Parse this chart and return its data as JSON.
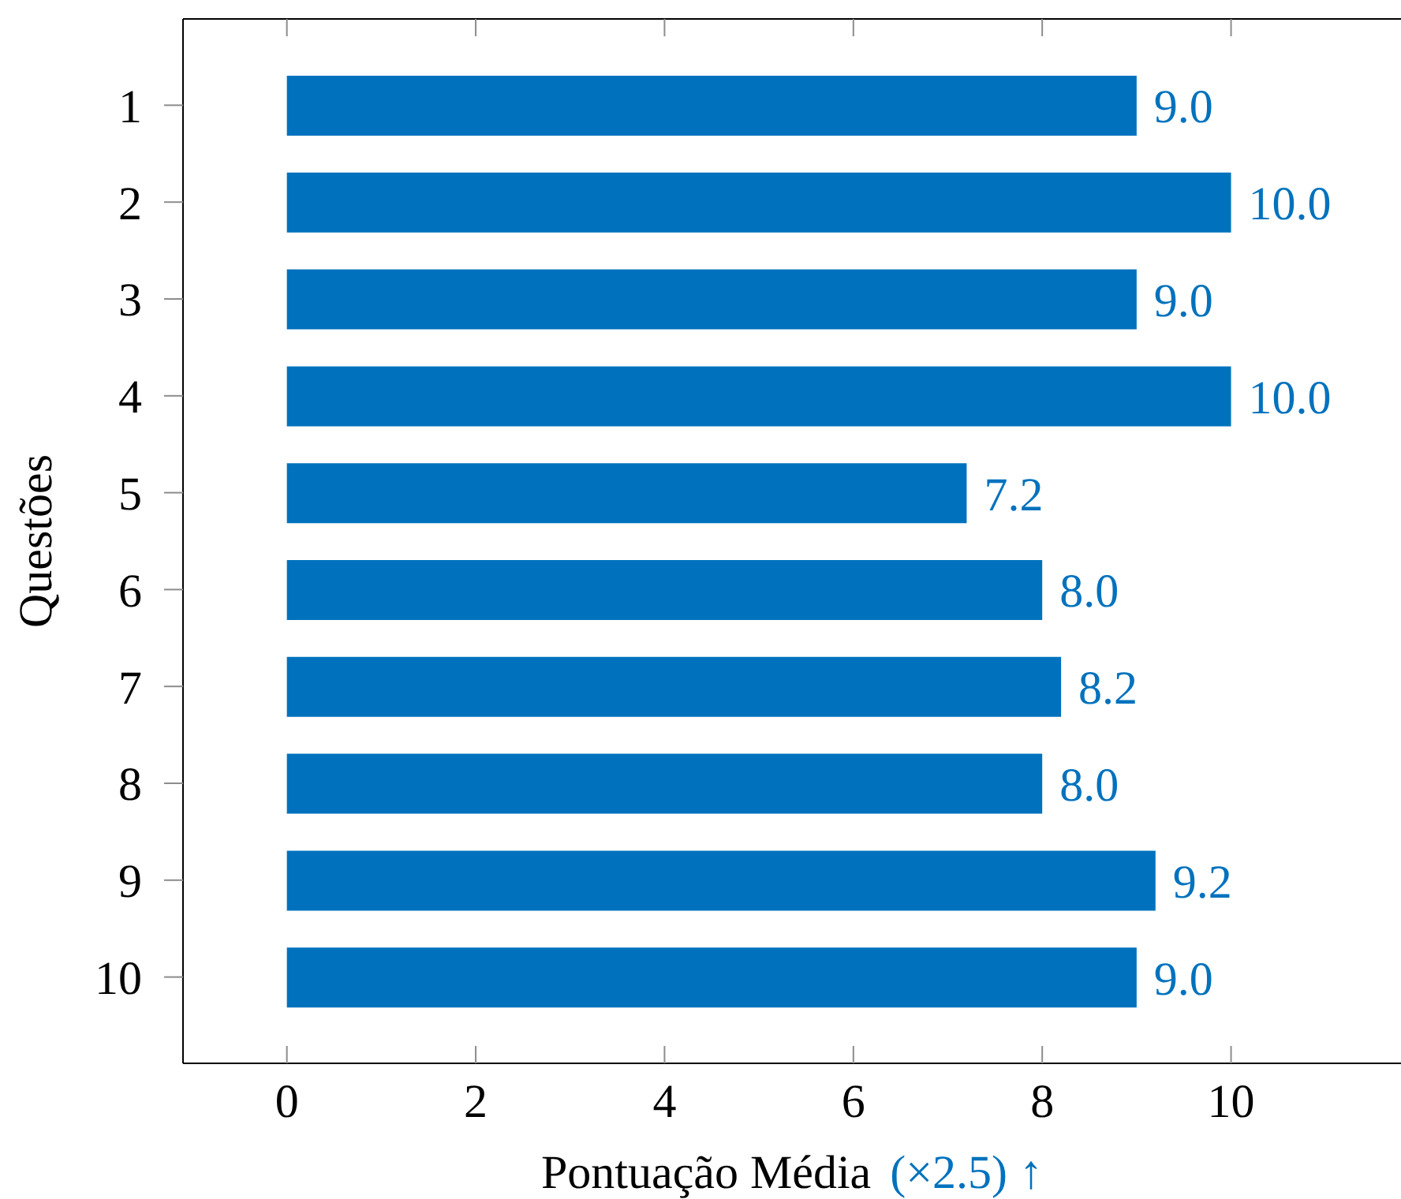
{
  "chart_data": {
    "type": "bar",
    "orientation": "horizontal",
    "xlabel": "Pontuação Média",
    "ylabel": "Questões",
    "annotations": [
      "(×2.5) ↑"
    ],
    "categories": [
      "1",
      "2",
      "3",
      "4",
      "5",
      "6",
      "7",
      "8",
      "9",
      "10"
    ],
    "values": [
      9.0,
      10.0,
      9.0,
      10.0,
      7.2,
      8.0,
      8.2,
      8.0,
      9.2,
      9.0
    ],
    "value_labels": [
      "9.0",
      "10.0",
      "9.0",
      "10.0",
      "7.2",
      "8.0",
      "8.2",
      "8.0",
      "9.2",
      "9.0"
    ],
    "color": "#0072bd",
    "xlim": [
      -1.1,
      11.8
    ],
    "xticks": [
      0,
      2,
      4,
      6,
      8,
      10
    ]
  }
}
